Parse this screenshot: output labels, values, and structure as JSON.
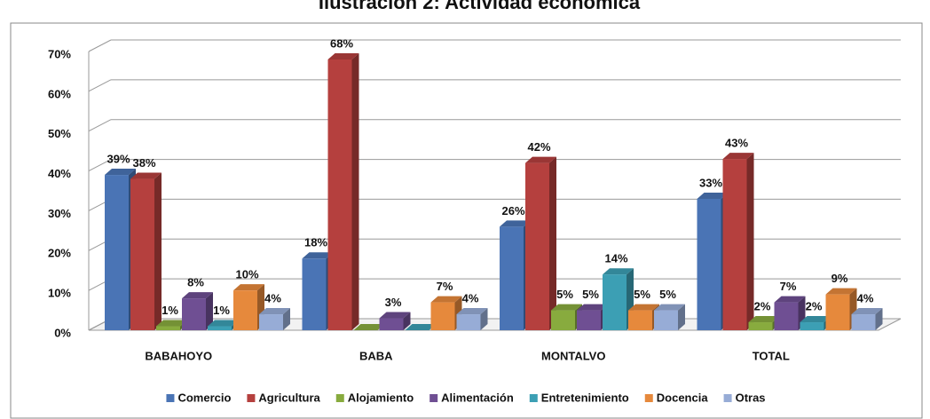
{
  "chart_data": {
    "type": "bar3d",
    "title": "Ilustración 2: Actividad económica",
    "categories": [
      "BABAHOYO",
      "BABA",
      "MONTALVO",
      "TOTAL"
    ],
    "series": [
      {
        "name": "Comercio",
        "color": "#4a74b5",
        "values": [
          39,
          18,
          26,
          33
        ],
        "value_labels": [
          "39%",
          "18%",
          "26%",
          "33%"
        ]
      },
      {
        "name": "Agricultura",
        "color": "#b5403e",
        "values": [
          38,
          68,
          42,
          43
        ],
        "value_labels": [
          "38%",
          "68%",
          "42%",
          "43%"
        ]
      },
      {
        "name": "Alojamiento",
        "color": "#88ab3e",
        "values": [
          1,
          0,
          5,
          2
        ],
        "value_labels": [
          "1%",
          null,
          "5%",
          "2%"
        ]
      },
      {
        "name": "Alimentación",
        "color": "#6f4f93",
        "values": [
          8,
          3,
          5,
          7
        ],
        "value_labels": [
          "8%",
          "3%",
          "5%",
          "7%"
        ]
      },
      {
        "name": "Entretenimiento",
        "color": "#3c9fb4",
        "values": [
          1,
          0,
          14,
          2
        ],
        "value_labels": [
          "1%",
          null,
          "14%",
          "2%"
        ]
      },
      {
        "name": "Docencia",
        "color": "#e6893c",
        "values": [
          10,
          7,
          5,
          9
        ],
        "value_labels": [
          "10%",
          "7%",
          "5%",
          "9%"
        ]
      },
      {
        "name": "Otras",
        "color": "#97acd6",
        "values": [
          4,
          4,
          5,
          4
        ],
        "value_labels": [
          "4%",
          "4%",
          "5%",
          "4%"
        ]
      }
    ],
    "ylim": [
      0,
      70
    ],
    "yticks": [
      {
        "value": 0,
        "label": "0%"
      },
      {
        "value": 10,
        "label": "10%"
      },
      {
        "value": 20,
        "label": "20%"
      },
      {
        "value": 30,
        "label": "30%"
      },
      {
        "value": 40,
        "label": "40%"
      },
      {
        "value": 50,
        "label": "50%"
      },
      {
        "value": 60,
        "label": "60%"
      },
      {
        "value": 70,
        "label": "70%"
      }
    ],
    "grid": true,
    "legend": "bottom"
  }
}
